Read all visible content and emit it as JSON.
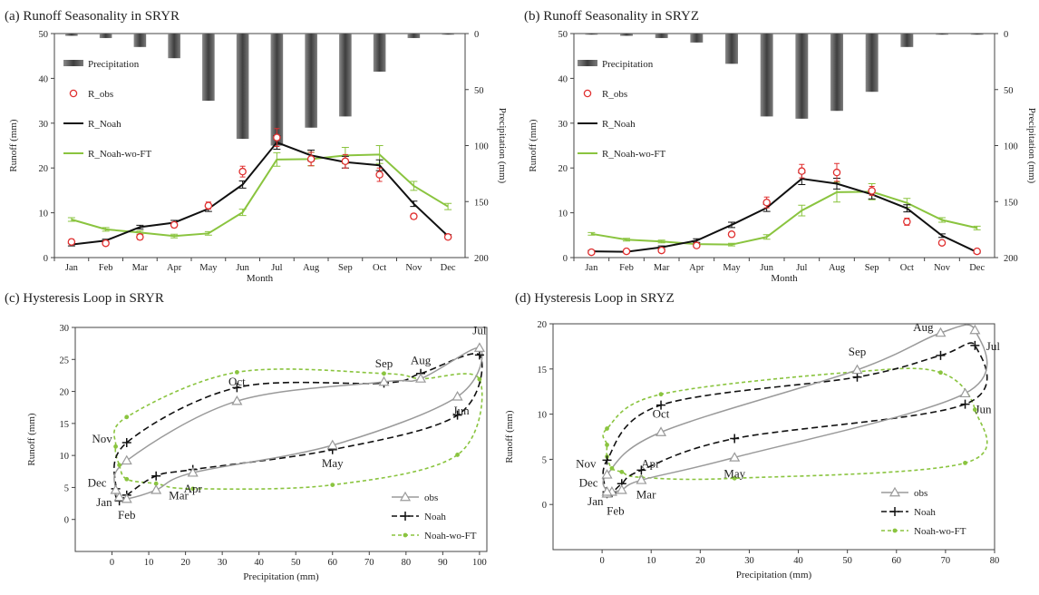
{
  "chart_data": [
    {
      "type": "bar+line",
      "title": "(a) Runoff Seasonality in SRYR",
      "xlabel": "Month",
      "ylabel": "Runoff (mm)",
      "y2label": "Precipitation (mm)",
      "categories": [
        "Jan",
        "Feb",
        "Mar",
        "Apr",
        "May",
        "Jun",
        "Jul",
        "Aug",
        "Sep",
        "Oct",
        "Nov",
        "Dec"
      ],
      "ylim": [
        0,
        50
      ],
      "yticks": [
        "0",
        "10",
        "20",
        "30",
        "40",
        "50"
      ],
      "y2lim": [
        0,
        200
      ],
      "y2_inverted": true,
      "y2ticks": [
        "0",
        "50",
        "100",
        "150",
        "200"
      ],
      "legend": [
        "Precipitation",
        "R_obs",
        "R_Noah",
        "R_Noah-wo-FT"
      ],
      "colors": {
        "Precipitation": "#555555",
        "R_obs": "#e03030",
        "R_Noah": "#111111",
        "R_Noah-wo-FT": "#8ac43f"
      },
      "series": [
        {
          "name": "Precipitation",
          "kind": "bar",
          "axis": "y2",
          "values": [
            2,
            4,
            12,
            22,
            60,
            94,
            100,
            84,
            74,
            34,
            4,
            1
          ]
        },
        {
          "name": "R_obs",
          "kind": "scatter",
          "values": [
            3.5,
            3.2,
            4.6,
            7.3,
            11.6,
            19.2,
            26.8,
            22.0,
            21.5,
            18.5,
            9.2,
            4.6
          ],
          "errors": [
            0.6,
            0.5,
            0.6,
            0.6,
            0.8,
            1.2,
            2.0,
            1.5,
            1.5,
            1.5,
            0.6,
            0.5
          ]
        },
        {
          "name": "R_Noah",
          "kind": "line",
          "values": [
            2.9,
            3.8,
            6.8,
            7.8,
            10.9,
            16.3,
            25.7,
            22.8,
            21.3,
            20.6,
            12.0,
            4.8
          ],
          "errors": [
            0.3,
            0.3,
            0.4,
            0.5,
            0.6,
            0.8,
            1.5,
            1.2,
            1.3,
            1.2,
            0.6,
            0.3
          ]
        },
        {
          "name": "R_Noah-wo-FT",
          "kind": "line",
          "values": [
            8.5,
            6.3,
            5.6,
            4.8,
            5.4,
            10.1,
            21.9,
            22.0,
            22.8,
            23.0,
            16.0,
            11.4
          ],
          "errors": [
            0.4,
            0.4,
            0.4,
            0.4,
            0.4,
            0.7,
            1.5,
            1.5,
            1.8,
            2.0,
            1.0,
            0.7
          ]
        }
      ]
    },
    {
      "type": "bar+line",
      "title": "(b) Runoff Seasonality in SRYZ",
      "xlabel": "Month",
      "ylabel": "Runoff (mm)",
      "y2label": "Precipitation (mm)",
      "categories": [
        "Jan",
        "Feb",
        "Mar",
        "Apr",
        "May",
        "Jun",
        "Jul",
        "Aug",
        "Sep",
        "Oct",
        "Nov",
        "Dec"
      ],
      "ylim": [
        0,
        50
      ],
      "yticks": [
        "0",
        "10",
        "20",
        "30",
        "40",
        "50"
      ],
      "y2lim": [
        0,
        200
      ],
      "y2_inverted": true,
      "y2ticks": [
        "0",
        "50",
        "100",
        "150",
        "200"
      ],
      "legend": [
        "Precipitation",
        "R_obs",
        "R_Noah",
        "R_Noah-wo-FT"
      ],
      "colors": {
        "Precipitation": "#555555",
        "R_obs": "#e03030",
        "R_Noah": "#111111",
        "R_Noah-wo-FT": "#8ac43f"
      },
      "series": [
        {
          "name": "Precipitation",
          "kind": "bar",
          "axis": "y2",
          "values": [
            1,
            2,
            4,
            8,
            27,
            74,
            76,
            69,
            52,
            12,
            1,
            1
          ]
        },
        {
          "name": "R_obs",
          "kind": "scatter",
          "values": [
            1.2,
            1.4,
            1.6,
            2.7,
            5.2,
            12.3,
            19.3,
            19.0,
            14.9,
            8.0,
            3.3,
            1.4
          ],
          "errors": [
            0.3,
            0.3,
            0.3,
            0.4,
            0.5,
            1.2,
            1.5,
            2.0,
            1.0,
            0.8,
            0.4,
            0.3
          ]
        },
        {
          "name": "R_Noah",
          "kind": "line",
          "values": [
            1.4,
            1.3,
            2.3,
            3.8,
            7.3,
            11.1,
            17.6,
            16.5,
            14.1,
            11.0,
            4.9,
            1.2
          ],
          "errors": [
            0.2,
            0.2,
            0.3,
            0.4,
            0.6,
            0.8,
            1.3,
            1.2,
            1.0,
            0.8,
            0.4,
            0.2
          ]
        },
        {
          "name": "R_Noah-wo-FT",
          "kind": "line",
          "values": [
            5.3,
            4.0,
            3.6,
            3.0,
            2.9,
            4.6,
            10.5,
            14.6,
            14.7,
            12.2,
            8.4,
            6.6
          ],
          "errors": [
            0.3,
            0.3,
            0.3,
            0.3,
            0.3,
            0.5,
            1.2,
            2.2,
            1.8,
            1.0,
            0.5,
            0.4
          ]
        }
      ]
    },
    {
      "type": "scatter",
      "title": "(c) Hysteresis Loop in SRYR",
      "xlabel": "Precipitation (mm)",
      "ylabel": "Runoff (mm)",
      "xlim": [
        -10,
        102
      ],
      "ylim": [
        -5,
        30
      ],
      "xticks": [
        "0",
        "10",
        "20",
        "30",
        "40",
        "50",
        "60",
        "70",
        "80",
        "90",
        "100"
      ],
      "yticks": [
        "0",
        "5",
        "10",
        "15",
        "20",
        "25",
        "30"
      ],
      "legend": [
        "obs",
        "Noah",
        "Noah-wo-FT"
      ],
      "colors": {
        "obs": "#9a9a9a",
        "Noah": "#111111",
        "Noah-wo-FT": "#8ac43f"
      },
      "labels": [
        "Jan",
        "Feb",
        "Mar",
        "Apr",
        "May",
        "Jun",
        "Jul",
        "Aug",
        "Sep",
        "Oct",
        "Nov",
        "Dec"
      ],
      "x": [
        2,
        4,
        12,
        22,
        60,
        94,
        100,
        84,
        74,
        34,
        4,
        1
      ],
      "series": [
        {
          "name": "obs",
          "values": [
            3.5,
            3.2,
            4.6,
            7.3,
            11.6,
            19.2,
            26.8,
            22.0,
            21.5,
            18.5,
            9.2,
            4.6
          ]
        },
        {
          "name": "Noah",
          "values": [
            2.9,
            3.8,
            6.8,
            7.8,
            10.9,
            16.3,
            25.7,
            22.8,
            21.3,
            20.6,
            12.0,
            4.8
          ]
        },
        {
          "name": "Noah-wo-FT",
          "values": [
            8.5,
            6.3,
            5.6,
            4.8,
            5.4,
            10.1,
            21.9,
            22.0,
            22.8,
            23.0,
            16.0,
            11.4
          ]
        }
      ]
    },
    {
      "type": "scatter",
      "title": "(d) Hysteresis Loop in SRYZ",
      "xlabel": "Precipitation (mm)",
      "ylabel": "Runoff (mm)",
      "xlim": [
        -10,
        80
      ],
      "ylim": [
        -5,
        20
      ],
      "xticks": [
        "0",
        "10",
        "20",
        "30",
        "40",
        "50",
        "60",
        "70",
        "80"
      ],
      "yticks": [
        "0",
        "5",
        "10",
        "15",
        "20"
      ],
      "legend": [
        "obs",
        "Noah",
        "Noah-wo-FT"
      ],
      "colors": {
        "obs": "#9a9a9a",
        "Noah": "#111111",
        "Noah-wo-FT": "#8ac43f"
      },
      "labels": [
        "Jan",
        "Feb",
        "Mar",
        "Apr",
        "May",
        "Jun",
        "Jul",
        "Aug",
        "Sep",
        "Oct",
        "Nov",
        "Dec"
      ],
      "x": [
        1,
        2,
        4,
        8,
        27,
        74,
        76,
        69,
        52,
        12,
        1,
        1
      ],
      "series": [
        {
          "name": "obs",
          "values": [
            1.2,
            1.4,
            1.6,
            2.7,
            5.2,
            12.3,
            19.3,
            19.0,
            14.9,
            8.0,
            3.3,
            1.4
          ]
        },
        {
          "name": "Noah",
          "values": [
            1.4,
            1.3,
            2.3,
            3.8,
            7.3,
            11.1,
            17.6,
            16.5,
            14.1,
            11.0,
            4.9,
            1.2
          ]
        },
        {
          "name": "Noah-wo-FT",
          "values": [
            5.3,
            4.0,
            3.6,
            3.0,
            2.9,
            4.6,
            10.5,
            14.6,
            14.7,
            12.2,
            8.4,
            6.6
          ]
        }
      ]
    }
  ]
}
